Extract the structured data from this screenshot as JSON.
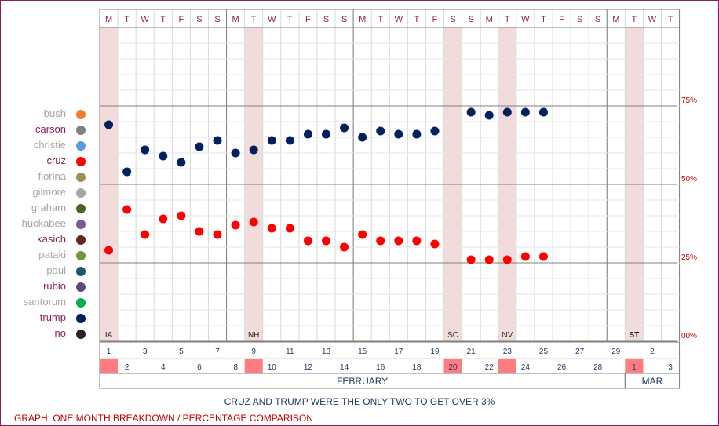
{
  "chart_data": {
    "type": "scatter",
    "weekday_letters": [
      "M",
      "T",
      "W",
      "T",
      "F",
      "S",
      "S",
      "M",
      "T",
      "W",
      "T",
      "F",
      "S",
      "S",
      "M",
      "T",
      "W",
      "T",
      "F",
      "S",
      "S",
      "M",
      "T",
      "W",
      "T",
      "F",
      "S",
      "S",
      "M",
      "T",
      "W",
      "T"
    ],
    "date_numbers": [
      "1",
      "2",
      "3",
      "4",
      "5",
      "6",
      "7",
      "8",
      "9",
      "10",
      "11",
      "12",
      "13",
      "14",
      "15",
      "16",
      "17",
      "18",
      "19",
      "20",
      "21",
      "22",
      "23",
      "24",
      "25",
      "26",
      "27",
      "28",
      "29",
      "1",
      "2",
      "3"
    ],
    "highlight_days": [
      0,
      8,
      19,
      22,
      29
    ],
    "event_labels": [
      {
        "day": 0,
        "label": "IA",
        "bold": false
      },
      {
        "day": 8,
        "label": "NH",
        "bold": false
      },
      {
        "day": 19,
        "label": "SC",
        "bold": false
      },
      {
        "day": 22,
        "label": "NV",
        "bold": false
      },
      {
        "day": 29,
        "label": "ST",
        "bold": true
      }
    ],
    "months": [
      {
        "label": "FEBRUARY",
        "start": 0,
        "end": 29
      },
      {
        "label": "MAR",
        "start": 29,
        "end": 32
      }
    ],
    "y_tick_labels": [
      "75%",
      "50%",
      "25%",
      "00%"
    ],
    "y_tick_values": [
      75,
      50,
      25,
      0
    ],
    "ylim": [
      0,
      100
    ],
    "series": [
      {
        "name": "trump",
        "color": "#002060",
        "values": [
          69,
          54,
          61,
          59,
          57,
          62,
          64,
          60,
          61,
          64,
          64,
          66,
          66,
          68,
          65,
          67,
          66,
          66,
          67,
          null,
          73,
          72,
          73,
          73,
          73,
          null,
          null,
          null,
          null,
          null,
          null,
          null
        ]
      },
      {
        "name": "cruz",
        "color": "#ff0000",
        "values": [
          29,
          42,
          34,
          39,
          40,
          35,
          34,
          37,
          38,
          36,
          36,
          32,
          32,
          30,
          34,
          32,
          32,
          32,
          31,
          null,
          26,
          26,
          26,
          27,
          27,
          null,
          null,
          null,
          null,
          null,
          null,
          null
        ]
      }
    ],
    "legend": [
      {
        "name": "bush",
        "color": "#ed7d31",
        "text_color": "#a6a6a6"
      },
      {
        "name": "carson",
        "color": "#808080",
        "text_color": "#8c1f57"
      },
      {
        "name": "christie",
        "color": "#5b9bd5",
        "text_color": "#a6a6a6"
      },
      {
        "name": "cruz",
        "color": "#ff0000",
        "text_color": "#8c1f57"
      },
      {
        "name": "fiorina",
        "color": "#9c8f5a",
        "text_color": "#a6a6a6"
      },
      {
        "name": "gilmore",
        "color": "#a6a6a6",
        "text_color": "#a6a6a6"
      },
      {
        "name": "graham",
        "color": "#4e6228",
        "text_color": "#a6a6a6"
      },
      {
        "name": "huckabee",
        "color": "#7a5a99",
        "text_color": "#a6a6a6"
      },
      {
        "name": "kasich",
        "color": "#632523",
        "text_color": "#8c1f57"
      },
      {
        "name": "pataki",
        "color": "#77933c",
        "text_color": "#a6a6a6"
      },
      {
        "name": "paul",
        "color": "#215867",
        "text_color": "#a6a6a6"
      },
      {
        "name": "rubio",
        "color": "#60497a",
        "text_color": "#8c1f57"
      },
      {
        "name": "santorum",
        "color": "#00b050",
        "text_color": "#a6a6a6"
      },
      {
        "name": "trump",
        "color": "#002060",
        "text_color": "#8c1f57"
      },
      {
        "name": "no",
        "color": "#262626",
        "text_color": "#8c1f57"
      }
    ],
    "caption": "CRUZ AND TRUMP WERE THE ONLY TWO TO GET OVER 3%",
    "footer": "GRAPH: ONE MONTH BREAKDOWN / PERCENTAGE COMPARISON"
  }
}
